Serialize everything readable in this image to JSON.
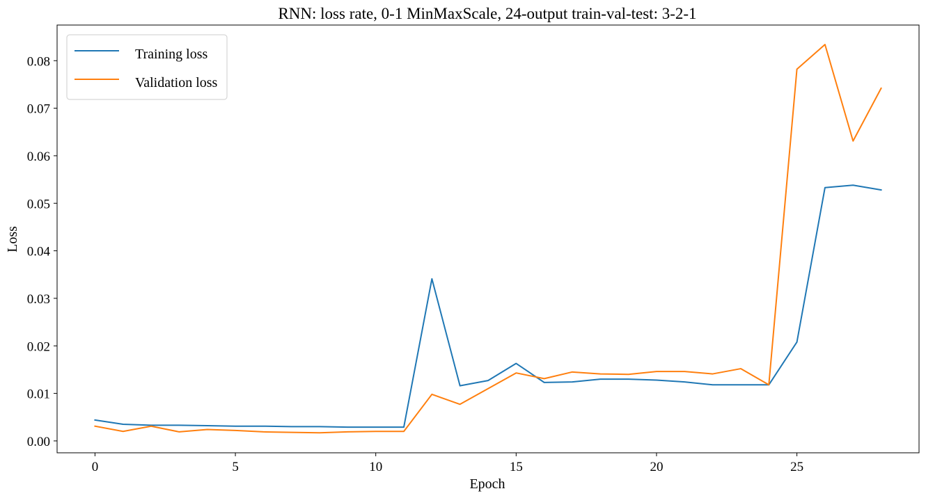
{
  "chart_data": {
    "type": "line",
    "title": "RNN: loss rate, 0-1 MinMaxScale, 24-output train-val-test: 3-2-1",
    "xlabel": "Epoch",
    "ylabel": "Loss",
    "xlim": [
      -1.35,
      29.35
    ],
    "ylim": [
      -0.0025,
      0.0875
    ],
    "xticks": [
      0,
      5,
      10,
      15,
      20,
      25
    ],
    "xtick_labels": [
      "0",
      "5",
      "10",
      "15",
      "20",
      "25"
    ],
    "yticks": [
      0,
      0.01,
      0.02,
      0.03,
      0.04,
      0.05,
      0.06,
      0.07,
      0.08
    ],
    "ytick_labels": [
      "0.00",
      "0.01",
      "0.02",
      "0.03",
      "0.04",
      "0.05",
      "0.06",
      "0.07",
      "0.08"
    ],
    "grid": false,
    "legend_position": "top-left",
    "x": [
      0,
      1,
      2,
      3,
      4,
      5,
      6,
      7,
      8,
      9,
      10,
      11,
      12,
      13,
      14,
      15,
      16,
      17,
      18,
      19,
      20,
      21,
      22,
      23,
      24,
      25,
      26,
      27,
      28
    ],
    "series": [
      {
        "name": "Training loss",
        "color": "#1f77b4",
        "values": [
          0.0044,
          0.0035,
          0.0033,
          0.0033,
          0.0032,
          0.0031,
          0.0031,
          0.003,
          0.003,
          0.0029,
          0.0029,
          0.0029,
          0.0341,
          0.0116,
          0.0127,
          0.0163,
          0.0123,
          0.0124,
          0.013,
          0.013,
          0.0128,
          0.0124,
          0.0118,
          0.0118,
          0.0118,
          0.0208,
          0.0533,
          0.0538,
          0.0528
        ]
      },
      {
        "name": "Validation loss",
        "color": "#ff7f0e",
        "values": [
          0.0031,
          0.002,
          0.0031,
          0.0019,
          0.0024,
          0.0022,
          0.0019,
          0.0018,
          0.0017,
          0.0019,
          0.002,
          0.002,
          0.0098,
          0.0077,
          0.011,
          0.0143,
          0.0131,
          0.0145,
          0.0141,
          0.014,
          0.0146,
          0.0146,
          0.0141,
          0.0152,
          0.0118,
          0.0782,
          0.0834,
          0.0631,
          0.0742
        ]
      }
    ]
  }
}
